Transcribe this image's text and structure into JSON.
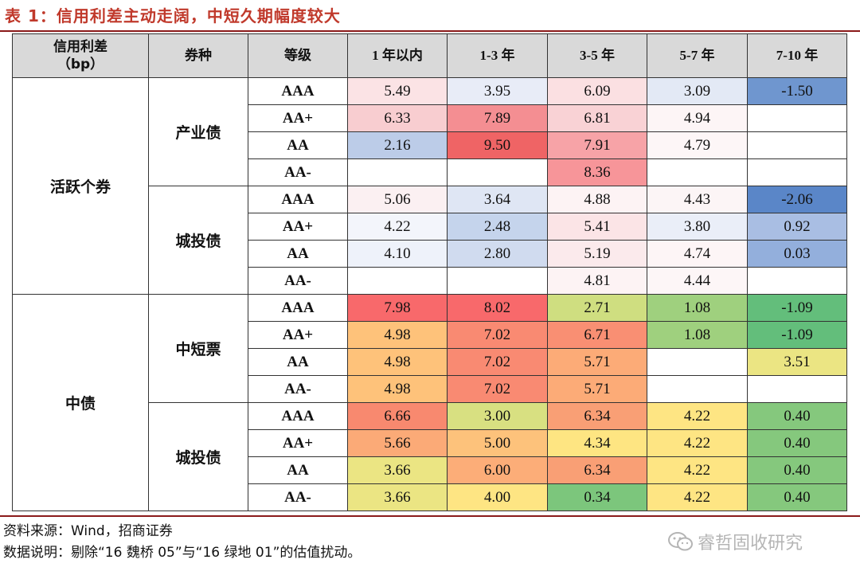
{
  "title": "表 1：信用利差主动走阔，中短久期幅度较大",
  "header": {
    "col0_line1": "信用利差",
    "col0_line2": "（bp）",
    "col1": "券种",
    "col2": "等级",
    "col3": "1 年以内",
    "col4": "1-3 年",
    "col5": "3-5 年",
    "col6": "5-7 年",
    "col7": "7-10 年"
  },
  "groups": {
    "g1": "活跃个券",
    "g2": "中债",
    "s1": "产业债",
    "s2": "城投债",
    "s3": "中短票",
    "s4": "城投债"
  },
  "rows": [
    {
      "grade": "AAA",
      "v": [
        "5.49",
        "3.95",
        "6.09",
        "3.09",
        "-1.50"
      ]
    },
    {
      "grade": "AA+",
      "v": [
        "6.33",
        "7.89",
        "6.81",
        "4.94",
        ""
      ]
    },
    {
      "grade": "AA",
      "v": [
        "2.16",
        "9.50",
        "7.91",
        "4.79",
        ""
      ]
    },
    {
      "grade": "AA-",
      "v": [
        "",
        "",
        "8.36",
        "",
        ""
      ]
    },
    {
      "grade": "AAA",
      "v": [
        "5.06",
        "3.64",
        "4.88",
        "4.43",
        "-2.06"
      ]
    },
    {
      "grade": "AA+",
      "v": [
        "4.22",
        "2.48",
        "5.41",
        "3.80",
        "0.92"
      ]
    },
    {
      "grade": "AA",
      "v": [
        "4.10",
        "2.80",
        "5.19",
        "4.74",
        "0.03"
      ]
    },
    {
      "grade": "AA-",
      "v": [
        "",
        "",
        "4.81",
        "4.44",
        ""
      ]
    },
    {
      "grade": "AAA",
      "v": [
        "7.98",
        "8.02",
        "2.71",
        "1.08",
        "-1.09"
      ]
    },
    {
      "grade": "AA+",
      "v": [
        "4.98",
        "7.02",
        "6.71",
        "1.08",
        "-1.09"
      ]
    },
    {
      "grade": "AA",
      "v": [
        "4.98",
        "7.02",
        "5.71",
        "",
        "3.51"
      ]
    },
    {
      "grade": "AA-",
      "v": [
        "4.98",
        "7.02",
        "5.71",
        "",
        ""
      ]
    },
    {
      "grade": "AAA",
      "v": [
        "6.66",
        "3.00",
        "6.34",
        "4.22",
        "0.40"
      ]
    },
    {
      "grade": "AA+",
      "v": [
        "5.66",
        "5.00",
        "4.34",
        "4.22",
        "0.40"
      ]
    },
    {
      "grade": "AA",
      "v": [
        "3.66",
        "6.00",
        "6.34",
        "4.22",
        "0.40"
      ]
    },
    {
      "grade": "AA-",
      "v": [
        "3.66",
        "4.00",
        "0.34",
        "4.22",
        "0.40"
      ]
    }
  ],
  "colors": [
    [
      "#fbe3e5",
      "#e8ecf7",
      "#fbe0e2",
      "#e3e9f5",
      "#6f96cf"
    ],
    [
      "#f8cdd0",
      "#f48e92",
      "#f9d2d5",
      "#fdf5f6",
      "#ffffff"
    ],
    [
      "#bccce8",
      "#ef6465",
      "#f7a3a7",
      "#fdf6f7",
      "#ffffff"
    ],
    [
      "#ffffff",
      "#ffffff",
      "#f79599",
      "#ffffff",
      "#ffffff"
    ],
    [
      "#fbf0f2",
      "#dfe6f4",
      "#fdf3f4",
      "#fcf5f6",
      "#5a86c8"
    ],
    [
      "#f3f5fb",
      "#c5d4ec",
      "#fbe4e6",
      "#eaeef8",
      "#a9bee3"
    ],
    [
      "#eef2fa",
      "#d0dbef",
      "#fbeaec",
      "#fdf5f6",
      "#93afdc"
    ],
    [
      "#ffffff",
      "#ffffff",
      "#fdf3f4",
      "#fdf6f7",
      "#ffffff"
    ],
    [
      "#f8696b",
      "#f8696b",
      "#cfde80",
      "#9fd07e",
      "#63be7b"
    ],
    [
      "#fec27a",
      "#f98a72",
      "#f98f73",
      "#9fd07e",
      "#63be7b"
    ],
    [
      "#fec27a",
      "#f98a72",
      "#fcab77",
      "#ffffff",
      "#ebe583"
    ],
    [
      "#fec27a",
      "#f98a72",
      "#fcab77",
      "#ffffff",
      "#ffffff"
    ],
    [
      "#f8896f",
      "#d8e081",
      "#f99f75",
      "#fee583",
      "#85c87d"
    ],
    [
      "#fbaa77",
      "#fdc27b",
      "#fee582",
      "#fee583",
      "#85c87d"
    ],
    [
      "#ebe583",
      "#fcad78",
      "#f99f75",
      "#fee583",
      "#85c87d"
    ],
    [
      "#ebe583",
      "#fee583",
      "#7cc67c",
      "#fee583",
      "#85c87d"
    ]
  ],
  "footer": {
    "source": "资料来源：Wind，招商证券",
    "note": "数据说明：剔除“16 魏桥 05”与“16 绿地 01”的估值扰动。"
  },
  "watermark": {
    "icon": "wechat-icon",
    "text": "睿哲固收研究"
  }
}
